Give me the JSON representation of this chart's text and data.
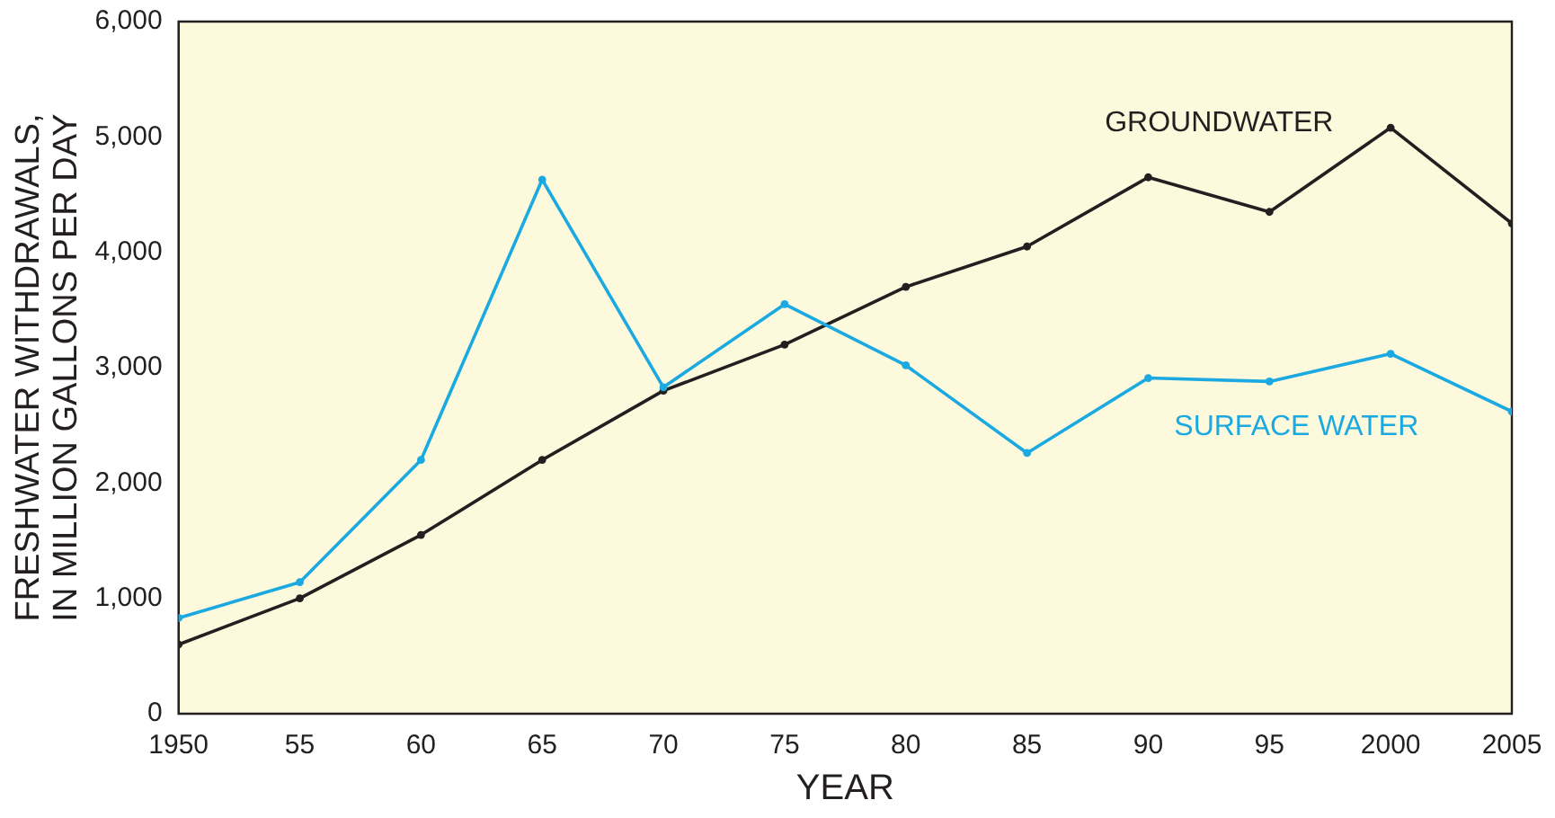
{
  "chart_data": {
    "type": "line",
    "xlabel": "YEAR",
    "ylabel": "FRESHWATER WITHDRAWALS, IN MILLION GALLONS PER DAY",
    "x": [
      1950,
      1955,
      1960,
      1965,
      1970,
      1975,
      1980,
      1985,
      1990,
      1995,
      2000,
      2005
    ],
    "xlim": [
      1950,
      2005
    ],
    "xticks": [
      1950,
      {
        "value": 1955,
        "label": "55"
      },
      {
        "value": 1960,
        "label": "60"
      },
      {
        "value": 1965,
        "label": "65"
      },
      {
        "value": 1970,
        "label": "70"
      },
      {
        "value": 1975,
        "label": "75"
      },
      {
        "value": 1980,
        "label": "80"
      },
      {
        "value": 1985,
        "label": "85"
      },
      {
        "value": 1990,
        "label": "90"
      },
      {
        "value": 1995,
        "label": "95"
      },
      2000,
      2005
    ],
    "ylim": [
      0,
      6000
    ],
    "yticks": [
      {
        "value": 0,
        "label": "0"
      },
      {
        "value": 1000,
        "label": "1,000"
      },
      {
        "value": 2000,
        "label": "2,000"
      },
      {
        "value": 3000,
        "label": "3,000"
      },
      {
        "value": 4000,
        "label": "4,000"
      },
      {
        "value": 5000,
        "label": "5,000"
      },
      {
        "value": 6000,
        "label": "6,000"
      }
    ],
    "series": [
      {
        "name": "GROUNDWATER",
        "color": "#231f20",
        "values": [
          600,
          1000,
          1550,
          2200,
          2800,
          3200,
          3700,
          4050,
          4650,
          4350,
          5080,
          4250
        ]
      },
      {
        "name": "SURFACE WATER",
        "color": "#1ba9e1",
        "values": [
          830,
          1140,
          2200,
          4630,
          2830,
          3550,
          3020,
          2260,
          2910,
          2880,
          3120,
          2620
        ]
      }
    ],
    "marker": "circle",
    "line_style": "solid",
    "grid": false,
    "legend": false
  }
}
